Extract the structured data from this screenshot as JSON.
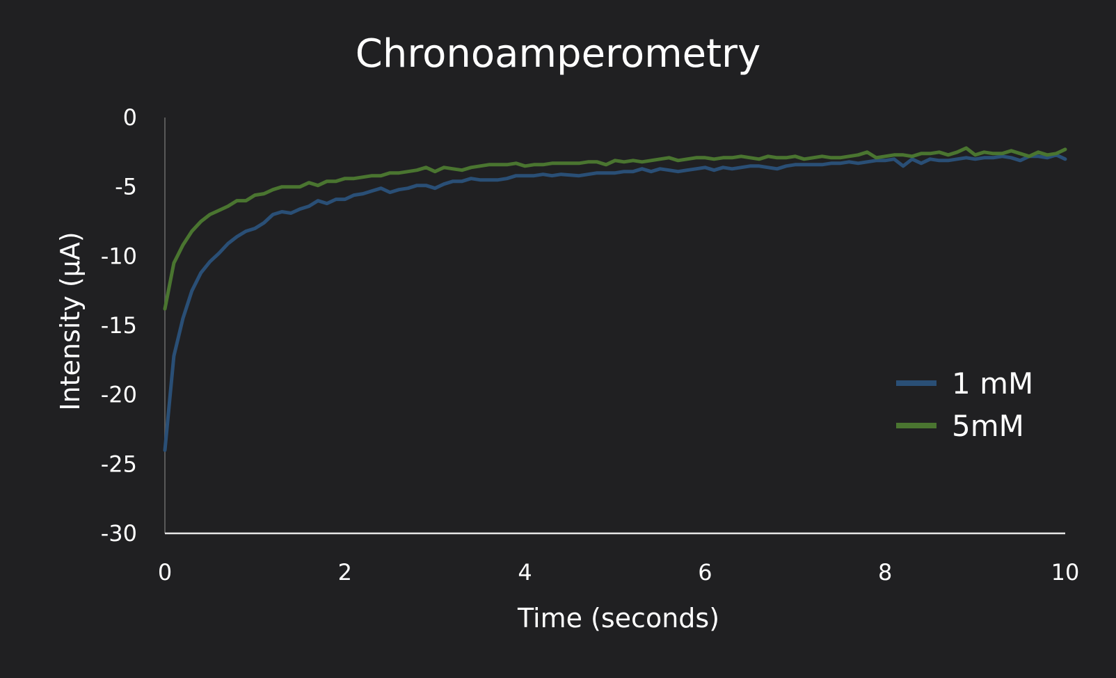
{
  "chart_data": {
    "type": "line",
    "title": "Chronoamperometry",
    "xlabel": "Time (seconds)",
    "ylabel": "Intensity (μA)",
    "xlim": [
      0,
      10
    ],
    "ylim": [
      -30,
      0
    ],
    "xticks": [
      0,
      2,
      4,
      6,
      8,
      10
    ],
    "yticks": [
      0,
      -5,
      -10,
      -15,
      -20,
      -25,
      -30
    ],
    "grid": false,
    "legend_position": "right",
    "x": [
      0,
      0.1,
      0.2,
      0.3,
      0.4,
      0.5,
      0.6,
      0.7,
      0.8,
      0.9,
      1.0,
      1.1,
      1.2,
      1.3,
      1.4,
      1.5,
      1.6,
      1.7,
      1.8,
      1.9,
      2.0,
      2.1,
      2.2,
      2.3,
      2.4,
      2.5,
      2.6,
      2.7,
      2.8,
      2.9,
      3.0,
      3.1,
      3.2,
      3.3,
      3.4,
      3.5,
      3.6,
      3.7,
      3.8,
      3.9,
      4.0,
      4.1,
      4.2,
      4.3,
      4.4,
      4.5,
      4.6,
      4.7,
      4.8,
      4.9,
      5.0,
      5.1,
      5.2,
      5.3,
      5.4,
      5.5,
      5.6,
      5.7,
      5.8,
      5.9,
      6.0,
      6.1,
      6.2,
      6.3,
      6.4,
      6.5,
      6.6,
      6.7,
      6.8,
      6.9,
      7.0,
      7.1,
      7.2,
      7.3,
      7.4,
      7.5,
      7.6,
      7.7,
      7.8,
      7.9,
      8.0,
      8.1,
      8.2,
      8.3,
      8.4,
      8.5,
      8.6,
      8.7,
      8.8,
      8.9,
      9.0,
      9.1,
      9.2,
      9.3,
      9.4,
      9.5,
      9.6,
      9.7,
      9.8,
      9.9,
      10.0
    ],
    "series": [
      {
        "name": "1 mM",
        "color": "#2a4f76",
        "values": [
          -24.0,
          -17.2,
          -14.5,
          -12.5,
          -11.2,
          -10.4,
          -9.8,
          -9.1,
          -8.6,
          -8.2,
          -8.0,
          -7.6,
          -7.0,
          -6.8,
          -6.9,
          -6.6,
          -6.4,
          -6.0,
          -6.2,
          -5.9,
          -5.9,
          -5.6,
          -5.5,
          -5.3,
          -5.1,
          -5.4,
          -5.2,
          -5.1,
          -4.9,
          -4.9,
          -5.1,
          -4.8,
          -4.6,
          -4.6,
          -4.4,
          -4.5,
          -4.5,
          -4.5,
          -4.4,
          -4.2,
          -4.2,
          -4.2,
          -4.1,
          -4.2,
          -4.1,
          -4.15,
          -4.2,
          -4.1,
          -4.0,
          -4.0,
          -4.0,
          -3.9,
          -3.9,
          -3.7,
          -3.9,
          -3.7,
          -3.8,
          -3.9,
          -3.8,
          -3.7,
          -3.6,
          -3.8,
          -3.6,
          -3.7,
          -3.6,
          -3.5,
          -3.5,
          -3.6,
          -3.7,
          -3.5,
          -3.4,
          -3.4,
          -3.4,
          -3.4,
          -3.3,
          -3.3,
          -3.2,
          -3.3,
          -3.2,
          -3.1,
          -3.1,
          -3.0,
          -3.5,
          -3.0,
          -3.3,
          -3.0,
          -3.1,
          -3.1,
          -3.0,
          -2.9,
          -3.0,
          -2.9,
          -2.9,
          -2.8,
          -2.9,
          -3.1,
          -2.8,
          -2.8,
          -2.9,
          -2.7,
          -3.0
        ]
      },
      {
        "name": "5mM",
        "color": "#4a7530",
        "values": [
          -13.8,
          -10.5,
          -9.2,
          -8.2,
          -7.5,
          -7.0,
          -6.7,
          -6.4,
          -6.0,
          -6.0,
          -5.6,
          -5.5,
          -5.2,
          -5.0,
          -5.0,
          -5.0,
          -4.7,
          -4.9,
          -4.6,
          -4.6,
          -4.4,
          -4.4,
          -4.3,
          -4.2,
          -4.2,
          -4.0,
          -4.0,
          -3.9,
          -3.8,
          -3.6,
          -3.9,
          -3.6,
          -3.7,
          -3.8,
          -3.6,
          -3.5,
          -3.4,
          -3.4,
          -3.4,
          -3.3,
          -3.5,
          -3.4,
          -3.4,
          -3.3,
          -3.3,
          -3.3,
          -3.3,
          -3.2,
          -3.2,
          -3.4,
          -3.1,
          -3.2,
          -3.1,
          -3.2,
          -3.1,
          -3.0,
          -2.9,
          -3.1,
          -3.0,
          -2.9,
          -2.9,
          -3.0,
          -2.9,
          -2.9,
          -2.8,
          -2.9,
          -3.0,
          -2.8,
          -2.9,
          -2.9,
          -2.8,
          -3.0,
          -2.9,
          -2.8,
          -2.9,
          -2.9,
          -2.8,
          -2.7,
          -2.5,
          -2.9,
          -2.8,
          -2.7,
          -2.7,
          -2.8,
          -2.6,
          -2.6,
          -2.5,
          -2.7,
          -2.5,
          -2.2,
          -2.7,
          -2.5,
          -2.6,
          -2.6,
          -2.4,
          -2.6,
          -2.8,
          -2.5,
          -2.7,
          -2.6,
          -2.3
        ]
      }
    ]
  }
}
